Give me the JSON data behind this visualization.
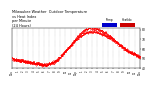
{
  "title": "Milwaukee Weather  Outdoor Temperature",
  "title2": "vs Heat Index",
  "title3": "per Minute",
  "title4": "(24 Hours)",
  "title_fontsize": 2.5,
  "background_color": "#ffffff",
  "plot_bg_color": "#ffffff",
  "dot_color": "#ff0000",
  "legend_temp_color": "#0000cc",
  "legend_heat_color": "#cc0000",
  "legend_temp_label": "Temp",
  "legend_heat_label": "HeatIdx",
  "xlim": [
    0,
    1440
  ],
  "ylim": [
    40,
    82
  ],
  "yticks": [
    40,
    50,
    60,
    70,
    80
  ],
  "ylabel_fontsize": 2.2,
  "xlabel_fontsize": 1.8,
  "grid_color": "#999999",
  "dot_size": 0.15,
  "time_points": [
    0,
    30,
    60,
    90,
    120,
    150,
    180,
    210,
    240,
    270,
    300,
    330,
    360,
    390,
    420,
    450,
    480,
    510,
    540,
    570,
    600,
    630,
    660,
    690,
    720,
    750,
    780,
    810,
    840,
    870,
    900,
    930,
    960,
    990,
    1020,
    1050,
    1080,
    1110,
    1140,
    1170,
    1200,
    1230,
    1260,
    1290,
    1320,
    1350,
    1380,
    1410,
    1440
  ],
  "temp_values": [
    50,
    49,
    49,
    48,
    48,
    47,
    47,
    46,
    46,
    45,
    45,
    44,
    44,
    44,
    45,
    46,
    47,
    49,
    52,
    55,
    58,
    61,
    64,
    67,
    70,
    72,
    74,
    76,
    77,
    78,
    78,
    78,
    77,
    76,
    75,
    74,
    72,
    71,
    69,
    67,
    65,
    63,
    61,
    59,
    57,
    56,
    55,
    53,
    52
  ],
  "x_tick_positions": [
    0,
    60,
    120,
    180,
    240,
    300,
    360,
    420,
    480,
    540,
    600,
    660,
    720,
    780,
    840,
    900,
    960,
    1020,
    1080,
    1140,
    1200,
    1260,
    1320,
    1380,
    1440
  ],
  "x_tick_labels": [
    "12a",
    "1",
    "2",
    "3",
    "4",
    "5",
    "6",
    "7",
    "8",
    "9",
    "10",
    "11",
    "12p",
    "1",
    "2",
    "3",
    "4",
    "5",
    "6",
    "7",
    "8",
    "9",
    "10",
    "11",
    "12a"
  ]
}
